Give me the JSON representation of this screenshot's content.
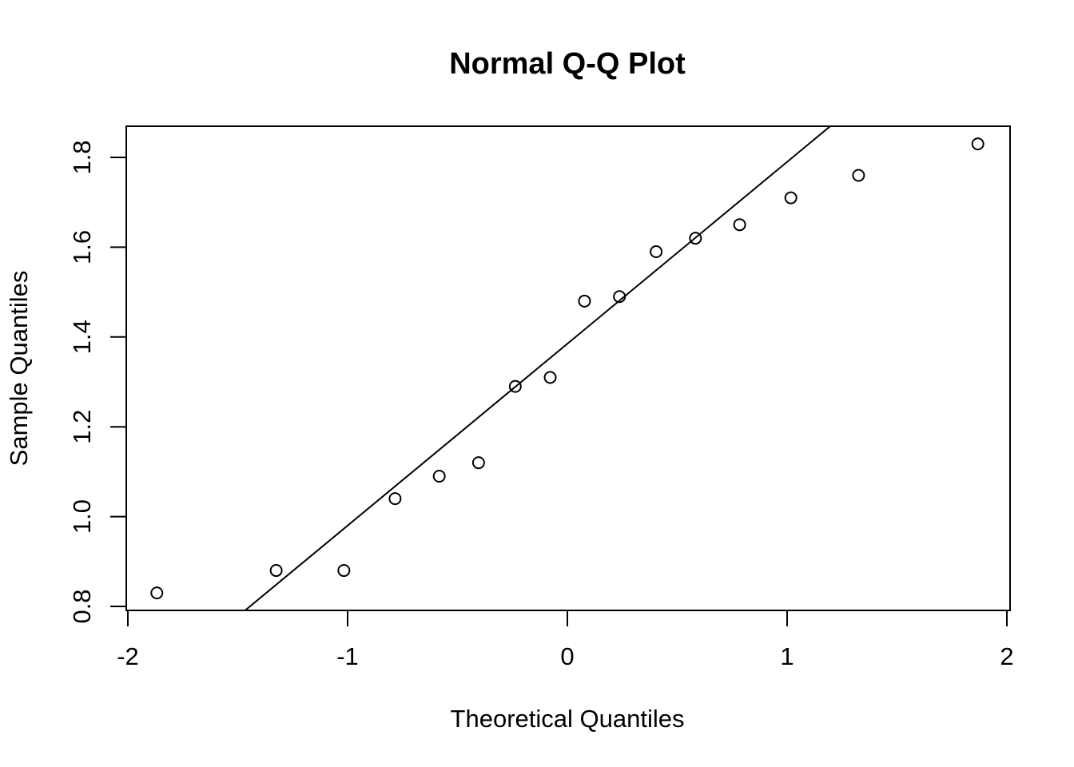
{
  "chart_data": {
    "type": "scatter",
    "title": "Normal Q-Q Plot",
    "xlabel": "Theoretical Quantiles",
    "ylabel": "Sample Quantiles",
    "xlim": [
      -2.0,
      2.0
    ],
    "ylim": [
      0.8,
      1.8
    ],
    "xticks": [
      -2,
      -1,
      0,
      1,
      2
    ],
    "xtick_labels": [
      "-2",
      "-1",
      "0",
      "1",
      "2"
    ],
    "yticks": [
      0.8,
      1.0,
      1.2,
      1.4,
      1.6,
      1.8
    ],
    "ytick_labels": [
      "0.8",
      "1.0",
      "1.2",
      "1.4",
      "1.6",
      "1.8"
    ],
    "grid": false,
    "legend": "none",
    "points": [
      {
        "x": -1.868,
        "y": 0.83
      },
      {
        "x": -1.325,
        "y": 0.88
      },
      {
        "x": -1.017,
        "y": 0.88
      },
      {
        "x": -0.784,
        "y": 1.04
      },
      {
        "x": -0.583,
        "y": 1.09
      },
      {
        "x": -0.404,
        "y": 1.12
      },
      {
        "x": -0.237,
        "y": 1.29
      },
      {
        "x": -0.078,
        "y": 1.31
      },
      {
        "x": 0.078,
        "y": 1.48
      },
      {
        "x": 0.237,
        "y": 1.49
      },
      {
        "x": 0.404,
        "y": 1.59
      },
      {
        "x": 0.583,
        "y": 1.62
      },
      {
        "x": 0.784,
        "y": 1.65
      },
      {
        "x": 1.017,
        "y": 1.71
      },
      {
        "x": 1.325,
        "y": 1.76
      },
      {
        "x": 1.868,
        "y": 1.83
      }
    ],
    "reference_line": {
      "intercept": 1.385,
      "slope": 0.405
    }
  }
}
